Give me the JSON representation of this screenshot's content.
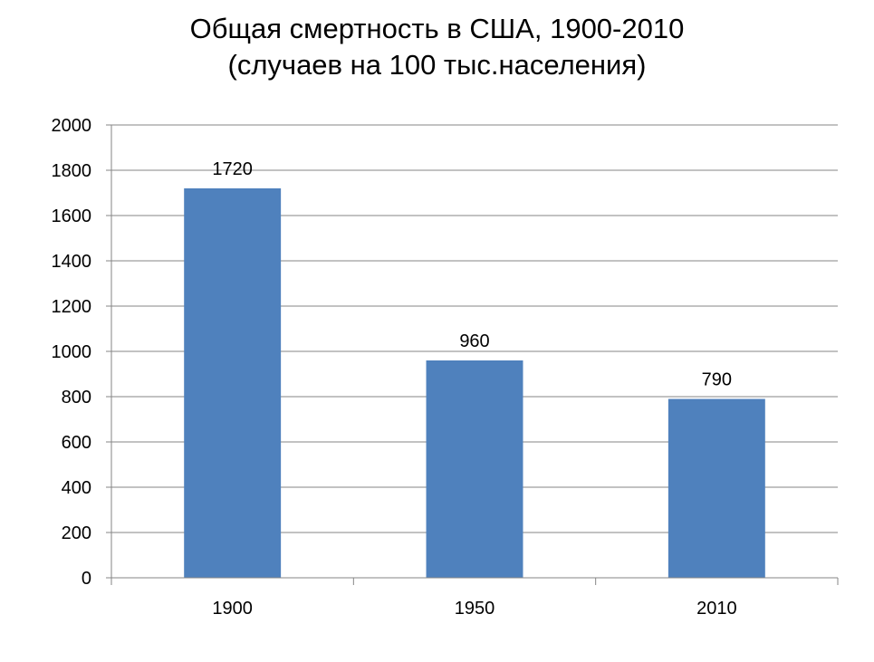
{
  "chart_data": {
    "type": "bar",
    "title_line1": "Общая смертность в США, 1900-2010",
    "title_line2": "(случаев на 100 тыс.населения)",
    "xlabel": "",
    "ylabel": "",
    "categories": [
      "1900",
      "1950",
      "2010"
    ],
    "values": [
      1720,
      960,
      790
    ],
    "data_labels": [
      "1720",
      "960",
      "790"
    ],
    "ylim": [
      0,
      2000
    ],
    "yticks": [
      0,
      200,
      400,
      600,
      800,
      1000,
      1200,
      1400,
      1600,
      1800,
      2000
    ],
    "grid": true,
    "legend": "none",
    "bar_color": "#4f81bd",
    "grid_color": "#868686"
  }
}
